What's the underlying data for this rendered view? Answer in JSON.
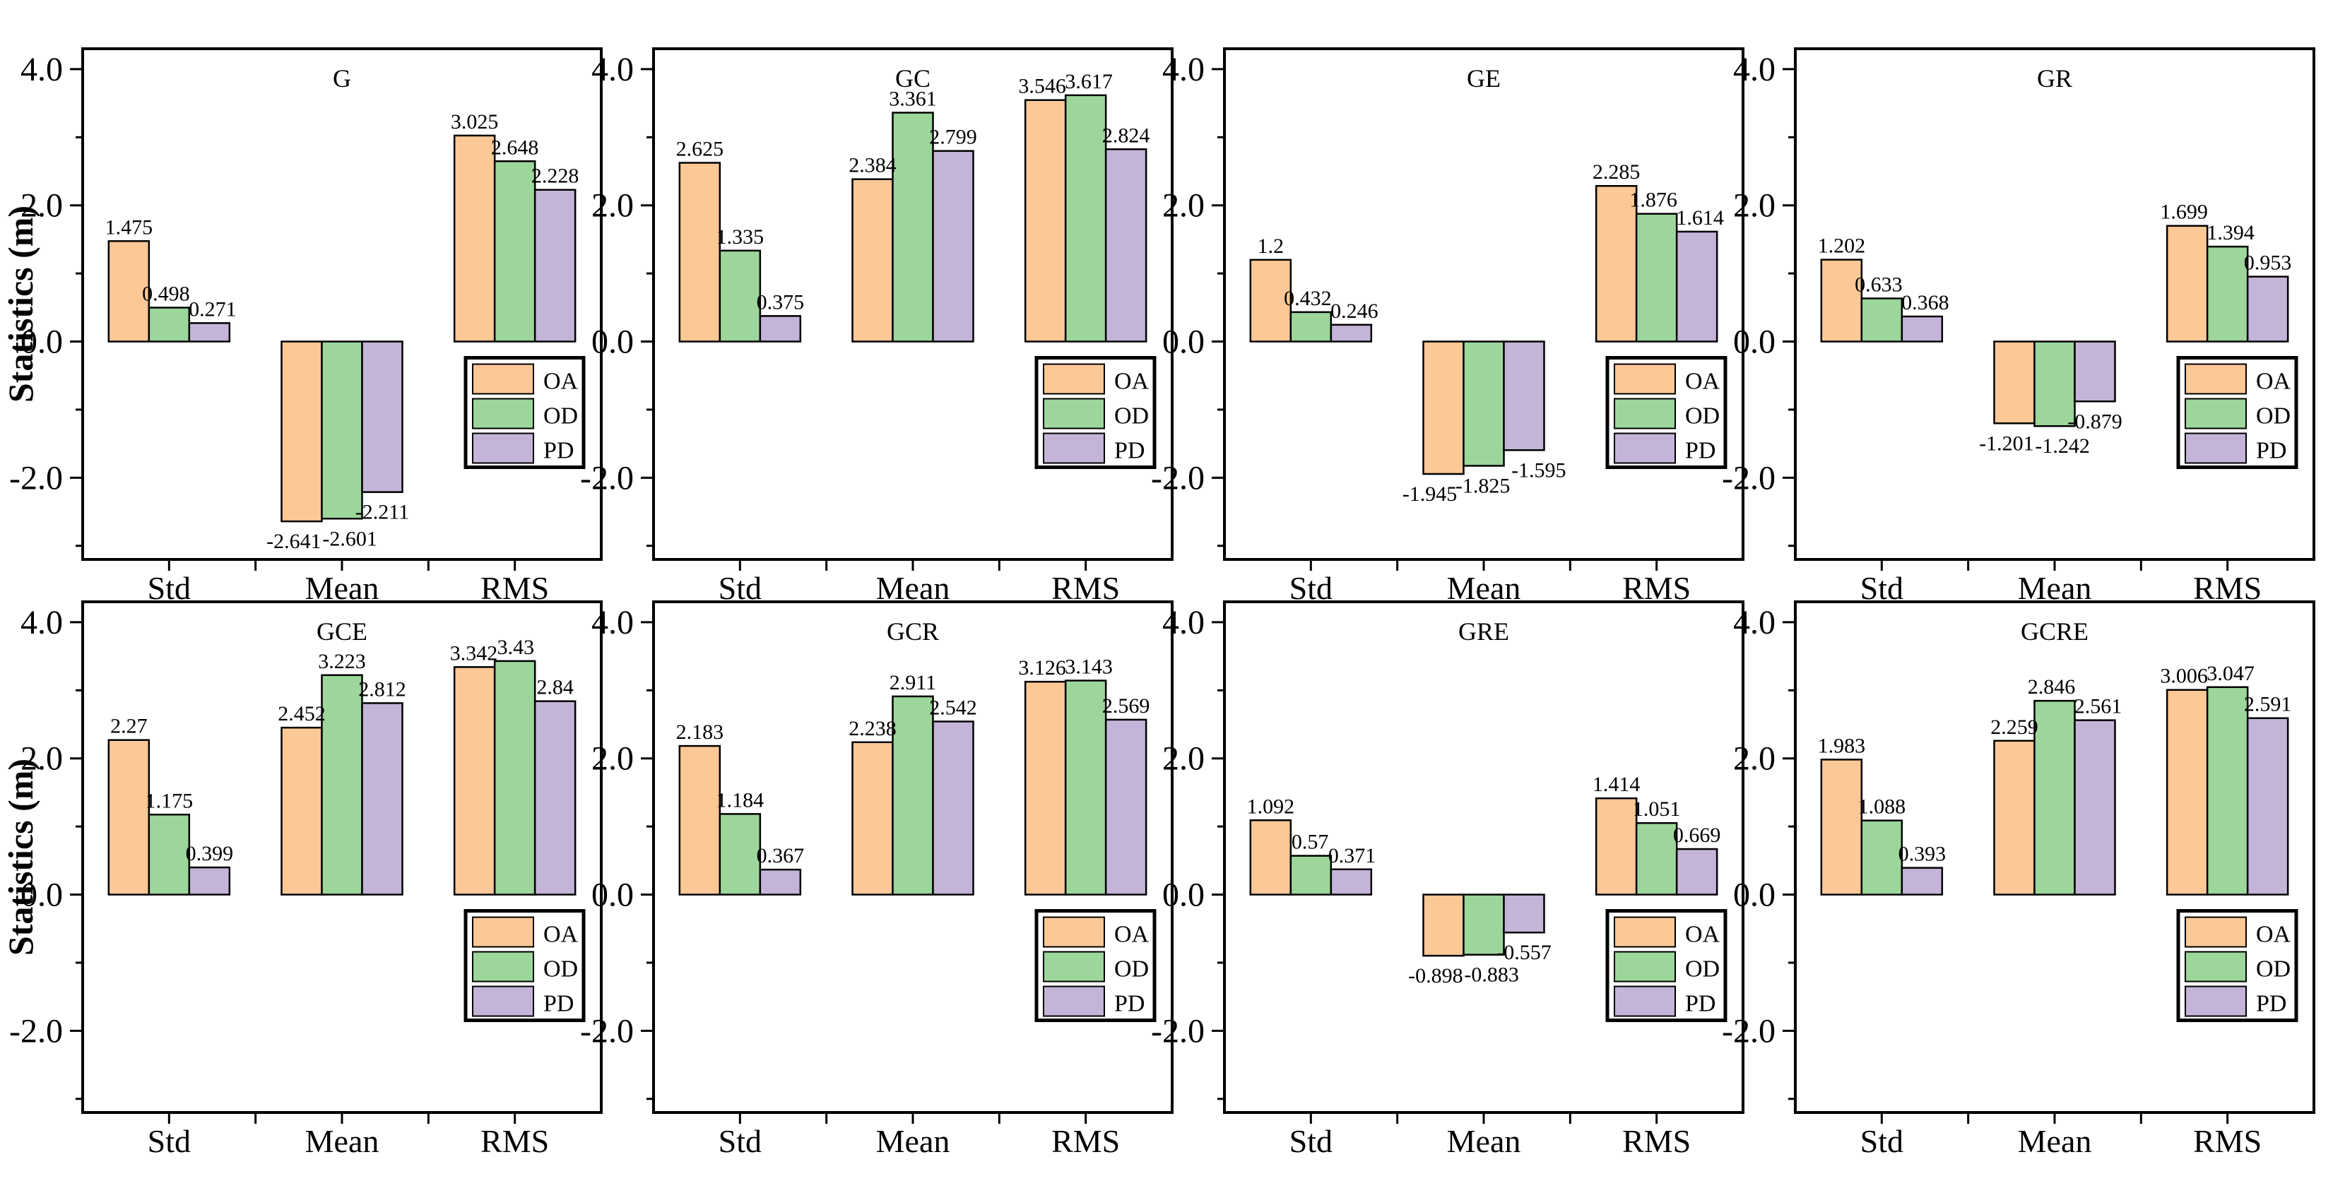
{
  "figure": {
    "ylabel": "Statistics (m)",
    "categories": [
      "Std",
      "Mean",
      "RMS"
    ],
    "series_names": [
      "OA",
      "OD",
      "PD"
    ],
    "colors": {
      "OA": "#fcc896",
      "OD": "#9dd69b",
      "PD": "#c4b4d8"
    },
    "axis": {
      "ytick_labels": [
        "4.0",
        "2.0",
        "0.0",
        "-2.0"
      ],
      "ytick_values": [
        4.0,
        2.0,
        0.0,
        -2.0
      ],
      "yminor_values": [
        3.0,
        1.0,
        -1.0,
        -3.0
      ],
      "ylim": [
        -3.2,
        4.3
      ]
    },
    "legend": {
      "items": [
        "OA",
        "OD",
        "PD"
      ],
      "position": "lower right"
    }
  },
  "chart_data": [
    {
      "type": "bar",
      "title": "G",
      "categories": [
        "Std",
        "Mean",
        "RMS"
      ],
      "ylabel": "Statistics (m)",
      "ylim": [
        -3.2,
        4.3
      ],
      "grid": false,
      "series": [
        {
          "name": "OA",
          "values": [
            1.475,
            -2.641,
            3.025
          ]
        },
        {
          "name": "OD",
          "values": [
            0.498,
            -2.601,
            2.648
          ]
        },
        {
          "name": "PD",
          "values": [
            0.271,
            -2.211,
            2.228
          ]
        }
      ]
    },
    {
      "type": "bar",
      "title": "GC",
      "categories": [
        "Std",
        "Mean",
        "RMS"
      ],
      "ylabel": "Statistics (m)",
      "ylim": [
        -3.2,
        4.3
      ],
      "grid": false,
      "series": [
        {
          "name": "OA",
          "values": [
            2.625,
            2.384,
            3.546
          ]
        },
        {
          "name": "OD",
          "values": [
            1.335,
            3.361,
            3.617
          ]
        },
        {
          "name": "PD",
          "values": [
            0.375,
            2.799,
            2.824
          ]
        }
      ]
    },
    {
      "type": "bar",
      "title": "GE",
      "categories": [
        "Std",
        "Mean",
        "RMS"
      ],
      "ylabel": "Statistics (m)",
      "ylim": [
        -3.2,
        4.3
      ],
      "grid": false,
      "series": [
        {
          "name": "OA",
          "values": [
            1.2,
            -1.945,
            2.285
          ]
        },
        {
          "name": "OD",
          "values": [
            0.432,
            -1.825,
            1.876
          ]
        },
        {
          "name": "PD",
          "values": [
            0.246,
            -1.595,
            1.614
          ]
        }
      ]
    },
    {
      "type": "bar",
      "title": "GR",
      "categories": [
        "Std",
        "Mean",
        "RMS"
      ],
      "ylabel": "Statistics (m)",
      "ylim": [
        -3.2,
        4.3
      ],
      "grid": false,
      "series": [
        {
          "name": "OA",
          "values": [
            1.202,
            -1.201,
            1.699
          ]
        },
        {
          "name": "OD",
          "values": [
            0.633,
            -1.242,
            1.394
          ]
        },
        {
          "name": "PD",
          "values": [
            0.368,
            -0.879,
            0.953
          ]
        }
      ]
    },
    {
      "type": "bar",
      "title": "GCE",
      "categories": [
        "Std",
        "Mean",
        "RMS"
      ],
      "ylabel": "Statistics (m)",
      "ylim": [
        -3.2,
        4.3
      ],
      "grid": false,
      "series": [
        {
          "name": "OA",
          "values": [
            2.27,
            2.452,
            3.342
          ]
        },
        {
          "name": "OD",
          "values": [
            1.175,
            3.223,
            3.43
          ]
        },
        {
          "name": "PD",
          "values": [
            0.399,
            2.812,
            2.84
          ]
        }
      ]
    },
    {
      "type": "bar",
      "title": "GCR",
      "categories": [
        "Std",
        "Mean",
        "RMS"
      ],
      "ylabel": "Statistics (m)",
      "ylim": [
        -3.2,
        4.3
      ],
      "grid": false,
      "series": [
        {
          "name": "OA",
          "values": [
            2.183,
            2.238,
            3.126
          ]
        },
        {
          "name": "OD",
          "values": [
            1.184,
            2.911,
            3.143
          ]
        },
        {
          "name": "PD",
          "values": [
            0.367,
            2.542,
            2.569
          ]
        }
      ]
    },
    {
      "type": "bar",
      "title": "GRE",
      "categories": [
        "Std",
        "Mean",
        "RMS"
      ],
      "ylabel": "Statistics (m)",
      "ylim": [
        -3.2,
        4.3
      ],
      "grid": false,
      "series": [
        {
          "name": "OA",
          "values": [
            1.092,
            -0.898,
            1.414
          ]
        },
        {
          "name": "OD",
          "values": [
            0.57,
            -0.883,
            1.051
          ]
        },
        {
          "name": "PD",
          "values": [
            0.371,
            -0.557,
            0.669
          ]
        }
      ]
    },
    {
      "type": "bar",
      "title": "GCRE",
      "categories": [
        "Std",
        "Mean",
        "RMS"
      ],
      "ylabel": "Statistics (m)",
      "ylim": [
        -3.2,
        4.3
      ],
      "grid": false,
      "series": [
        {
          "name": "OA",
          "values": [
            1.983,
            2.259,
            3.006
          ]
        },
        {
          "name": "OD",
          "values": [
            1.088,
            2.846,
            3.047
          ]
        },
        {
          "name": "PD",
          "values": [
            0.393,
            2.561,
            2.591
          ]
        }
      ]
    }
  ]
}
